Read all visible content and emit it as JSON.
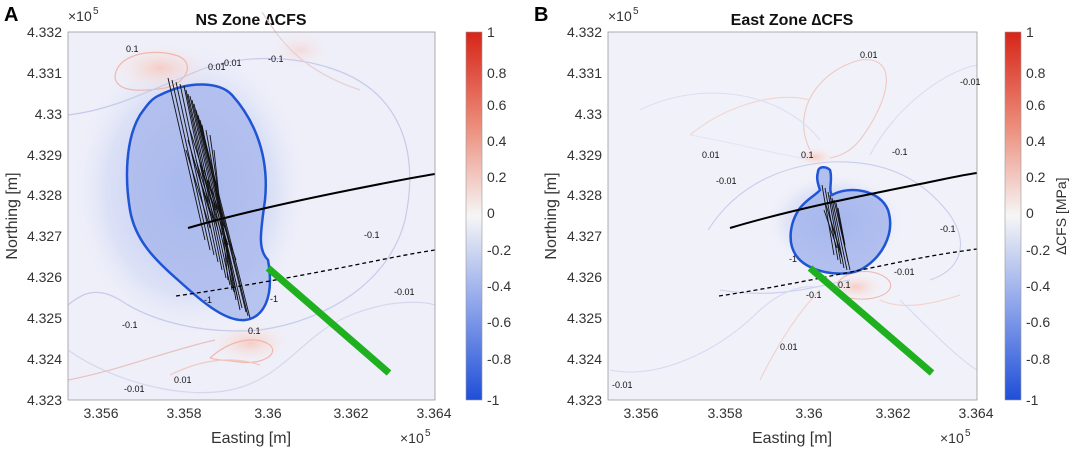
{
  "panels": [
    {
      "letter": "A",
      "title": "NS Zone ∆CFS",
      "xlabel": "Easting [m]",
      "ylabel": "Northing [m]",
      "x_ticks": [
        "3.356",
        "3.358",
        "3.36",
        "3.362",
        "3.364"
      ],
      "y_ticks": [
        "4.332",
        "4.331",
        "4.33",
        "4.329",
        "4.328",
        "4.327",
        "4.326",
        "4.325",
        "4.324",
        "4.323"
      ],
      "x_exp_base": "×10",
      "x_exp_pow": "5",
      "y_exp_base": "×10",
      "y_exp_pow": "5",
      "colorbar_ticks": [
        "1",
        "0.8",
        "0.6",
        "0.4",
        "0.2",
        "0",
        "-0.2",
        "-0.4",
        "-0.6",
        "-0.8",
        "-1"
      ],
      "colorbar_label": "",
      "contour_labels": [
        "0.1",
        "0.01",
        "-0.01",
        "-0.1",
        "-0.1",
        "-0.1",
        "-0.01",
        "0.1",
        "-0.01",
        "0.01",
        "-1",
        "-1"
      ]
    },
    {
      "letter": "B",
      "title": "East Zone ∆CFS",
      "xlabel": "Easting [m]",
      "ylabel": "Northing [m]",
      "x_ticks": [
        "3.356",
        "3.358",
        "3.36",
        "3.362",
        "3.364"
      ],
      "y_ticks": [
        "4.332",
        "4.331",
        "4.33",
        "4.329",
        "4.328",
        "4.327",
        "4.326",
        "4.325",
        "4.324",
        "4.323"
      ],
      "x_exp_base": "×10",
      "x_exp_pow": "5",
      "y_exp_base": "×10",
      "y_exp_pow": "5",
      "colorbar_ticks": [
        "1",
        "0.8",
        "0.6",
        "0.4",
        "0.2",
        "0",
        "-0.2",
        "-0.4",
        "-0.6",
        "-0.8",
        "-1"
      ],
      "colorbar_label": "∆CFS [MPa]",
      "contour_labels": [
        "0.01",
        "-0.01",
        "0.01",
        "-0.01",
        "0.1",
        "-0.1",
        "-0.1",
        "-1",
        "-0.01",
        "-0.1",
        "0.1",
        "0.01",
        "-0.01"
      ]
    }
  ],
  "chart_data": [
    {
      "type": "heatmap",
      "title": "NS Zone ∆CFS",
      "xlabel": "Easting [m]",
      "ylabel": "Northing [m]",
      "xlim": [
        335500,
        336400
      ],
      "ylim": [
        432300,
        433200
      ],
      "colorbar_range": [
        -1,
        1
      ],
      "colormap": "blue-white-red",
      "fault_lines": {
        "solid": [
          [
            335780,
            432722
          ],
          [
            336400,
            432860
          ]
        ],
        "dashed": [
          [
            335770,
            432555
          ],
          [
            336400,
            432667
          ]
        ]
      },
      "green_line": [
        [
          335995,
          432623
        ],
        [
          336290,
          432365
        ]
      ]
    },
    {
      "type": "heatmap",
      "title": "East Zone ∆CFS",
      "xlabel": "Easting [m]",
      "ylabel": "Northing [m]",
      "xlim": [
        335500,
        336400
      ],
      "ylim": [
        432300,
        433200
      ],
      "colorbar_range": [
        -1,
        1
      ],
      "colorbar_label": "∆CFS [MPa]",
      "colormap": "blue-white-red",
      "fault_lines": {
        "solid": [
          [
            335780,
            432722
          ],
          [
            336400,
            432860
          ]
        ],
        "dashed": [
          [
            335770,
            432555
          ],
          [
            336400,
            432667
          ]
        ]
      },
      "green_line": [
        [
          335995,
          432623
        ],
        [
          336290,
          432365
        ]
      ]
    }
  ]
}
